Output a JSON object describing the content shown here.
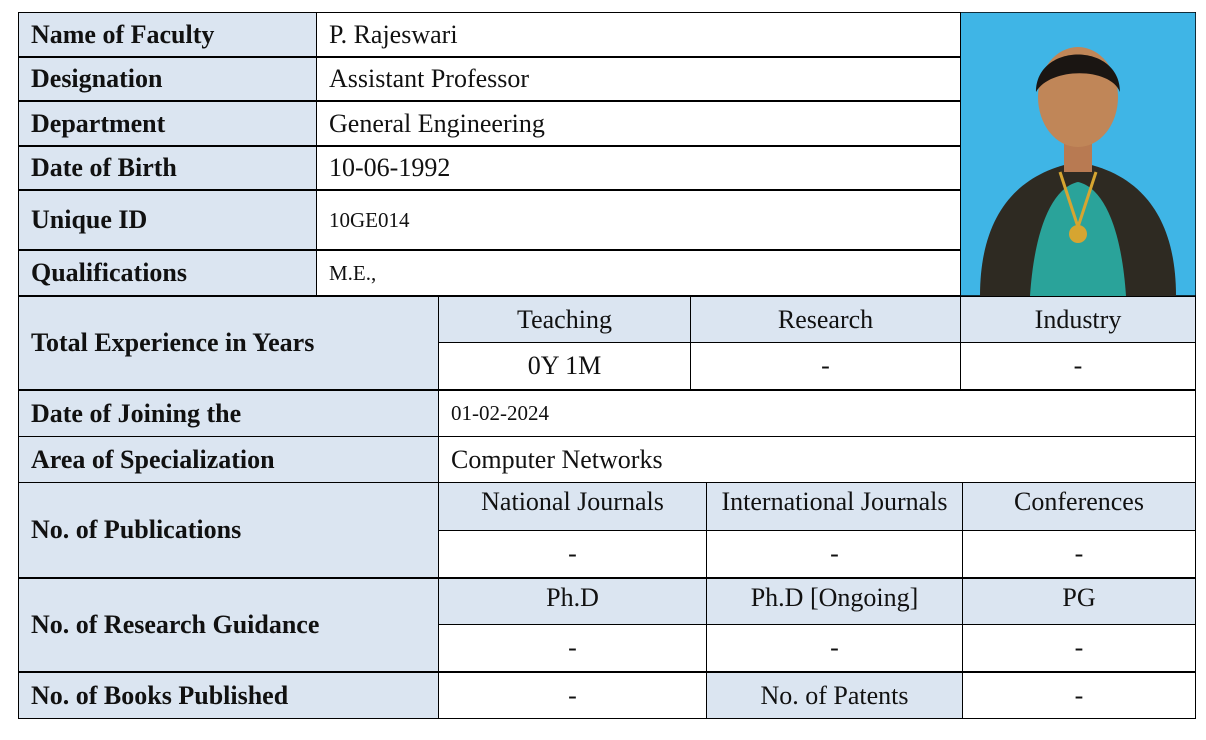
{
  "profile": {
    "rows": [
      {
        "label": "Name of Faculty",
        "value": "P. Rajeswari"
      },
      {
        "label": "Designation",
        "value": "Assistant Professor"
      },
      {
        "label": "Department",
        "value": "General Engineering"
      },
      {
        "label": "Date of Birth",
        "value": "10-06-1992"
      },
      {
        "label": "Unique ID",
        "value": "10GE014"
      },
      {
        "label": "Qualifications",
        "value": "M.E.,"
      }
    ]
  },
  "experience": {
    "label": "Total Experience in Years",
    "headers": [
      "Teaching",
      "Research",
      "Industry"
    ],
    "values": [
      "0Y 1M",
      "-",
      "-"
    ]
  },
  "joining": {
    "label": "Date of Joining the",
    "value": "01-02-2024"
  },
  "specialization": {
    "label": "Area of Specialization",
    "value": "Computer Networks"
  },
  "publications": {
    "label": "No. of  Publications",
    "headers": [
      "National Journals",
      "International Journals",
      "Conferences"
    ],
    "values": [
      "-",
      "-",
      "-"
    ]
  },
  "guidance": {
    "label": "No. of Research Guidance",
    "headers": [
      "Ph.D",
      "Ph.D [Ongoing]",
      "PG"
    ],
    "values": [
      "-",
      "-",
      "-"
    ]
  },
  "books": {
    "label": "No. of Books Published",
    "value": "-",
    "patents_label": "No. of Patents",
    "patents_value": "-"
  }
}
